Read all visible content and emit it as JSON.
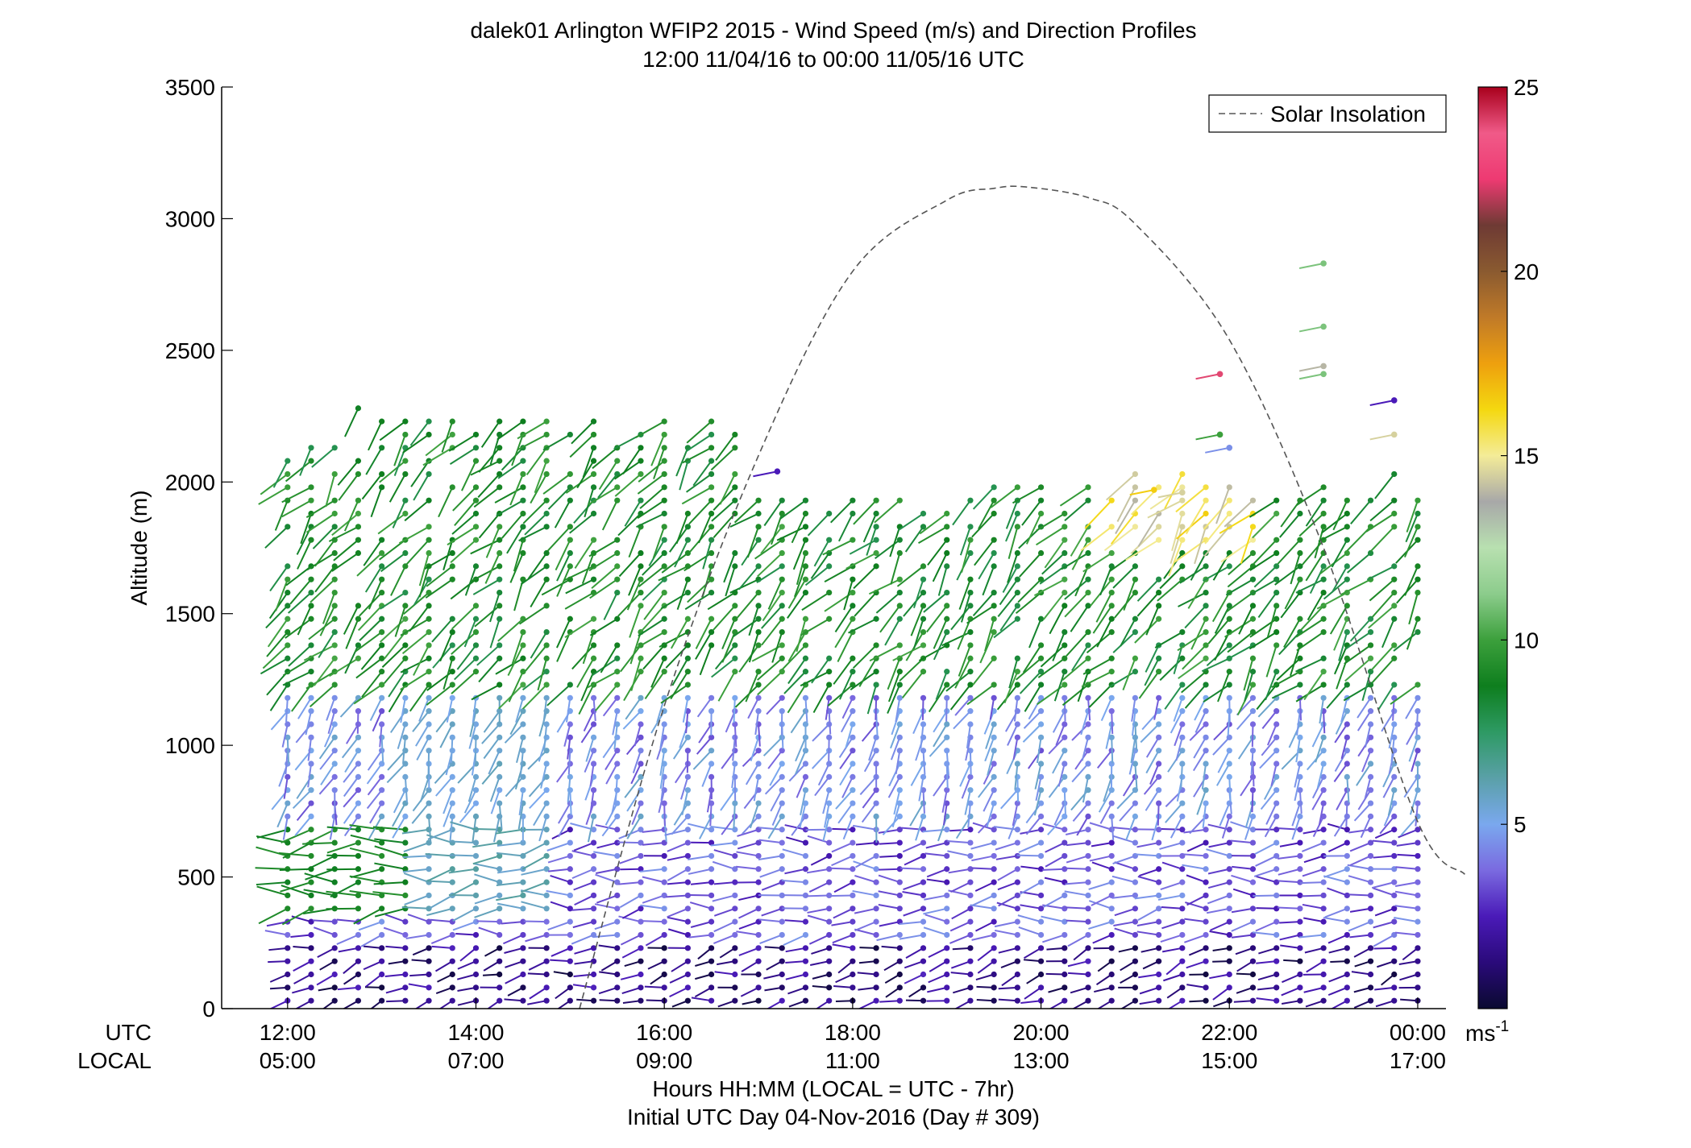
{
  "chart_data": {
    "type": "scatter",
    "title": "dalek01 Arlington WFIP2 2015 - Wind Speed (m/s) and Direction Profiles",
    "subtitle": "12:00 11/04/16 to 00:00 11/05/16  UTC",
    "ylabel": "Altitude (m)",
    "xlabel": "Hours HH:MM  (LOCAL = UTC - 7hr)",
    "xlabel2": "Initial UTC Day 04-Nov-2016 (Day # 309)",
    "xaxis_row_labels": [
      "UTC",
      "LOCAL"
    ],
    "x_ticks_utc": [
      "12:00",
      "14:00",
      "16:00",
      "18:00",
      "20:00",
      "22:00",
      "00:00"
    ],
    "x_ticks_local": [
      "05:00",
      "07:00",
      "09:00",
      "11:00",
      "13:00",
      "15:00",
      "17:00"
    ],
    "xlim_hours_utc": [
      11.3,
      24.3
    ],
    "ylim": [
      0,
      3500
    ],
    "y_ticks": [
      "0",
      "500",
      "1000",
      "1500",
      "2000",
      "2500",
      "3000",
      "3500"
    ],
    "grid": false,
    "legend": {
      "position": "top-right",
      "entries": [
        "Solar Insolation"
      ]
    },
    "colorbar": {
      "range": [
        0,
        25
      ],
      "ticks": [
        "5",
        "10",
        "15",
        "20",
        "25"
      ],
      "unit_label": "ms",
      "unit_exponent": "-1",
      "colors": [
        "#0a0a30",
        "#2a0a7a",
        "#4a1ab8",
        "#7a6ae0",
        "#7aa8ee",
        "#5aa0a8",
        "#2e9a64",
        "#0e7e1e",
        "#3ca03c",
        "#8ccc8c",
        "#b8e0b0",
        "#a8a8a8",
        "#f4ec98",
        "#f4d810",
        "#eea00e",
        "#c07a28",
        "#8a5a30",
        "#6e3a34",
        "#ee3a72",
        "#f05a88",
        "#a8001c"
      ]
    },
    "solar_insolation": {
      "style": "dashed",
      "x_hours_utc": [
        15.1,
        16.0,
        17.0,
        18.0,
        19.0,
        19.5,
        19.85,
        20.5,
        21.0,
        22.0,
        23.0,
        24.0,
        24.5
      ],
      "y": [
        0,
        1150,
        2100,
        2800,
        3070,
        3115,
        3120,
        3080,
        2980,
        2540,
        1750,
        710,
        510
      ]
    },
    "profiles": {
      "x_hours_utc": [
        12.0,
        12.25,
        12.5,
        12.75,
        13.0,
        13.25,
        13.5,
        13.75,
        14.0,
        14.25,
        14.5,
        14.75,
        15.0,
        15.25,
        15.5,
        15.75,
        16.0,
        16.25,
        16.5,
        16.75,
        17.0,
        17.25,
        17.5,
        17.75,
        18.0,
        18.25,
        18.5,
        18.75,
        19.0,
        19.25,
        19.5,
        19.75,
        20.0,
        20.25,
        20.5,
        20.75,
        21.0,
        21.25,
        21.5,
        21.75,
        22.0,
        22.25,
        22.5,
        22.75,
        23.0,
        23.25,
        23.5,
        23.75,
        24.0
      ],
      "wind_layers": [
        {
          "y_range": [
            20,
            280
          ],
          "speed": 1.5,
          "direction_deg": 255
        },
        {
          "y_range": [
            280,
            720
          ],
          "speed": 3.5,
          "direction_deg": 265
        },
        {
          "y_range": [
            720,
            1200
          ],
          "speed": 4.5,
          "direction_deg": 200
        },
        {
          "y_range": [
            1200,
            2050
          ],
          "speed": 9.0,
          "direction_deg": 220
        }
      ]
    },
    "upper_isolated_points": [
      {
        "x_hour": 17.2,
        "y": 2040,
        "speed": 2.5
      },
      {
        "x_hour": 21.9,
        "y": 2410,
        "speed": 24.0
      },
      {
        "x_hour": 21.9,
        "y": 2180,
        "speed": 10.0
      },
      {
        "x_hour": 22.0,
        "y": 2130,
        "speed": 4.5
      },
      {
        "x_hour": 23.0,
        "y": 2830,
        "speed": 11.0
      },
      {
        "x_hour": 23.0,
        "y": 2590,
        "speed": 11.0
      },
      {
        "x_hour": 23.0,
        "y": 2440,
        "speed": 14.0
      },
      {
        "x_hour": 23.0,
        "y": 2410,
        "speed": 11.0
      },
      {
        "x_hour": 23.75,
        "y": 2310,
        "speed": 2.5
      },
      {
        "x_hour": 23.75,
        "y": 2180,
        "speed": 14.5
      },
      {
        "x_hour": 21.2,
        "y": 1970,
        "speed": 16.5
      },
      {
        "x_hour": 21.5,
        "y": 1960,
        "speed": 14.5
      }
    ]
  }
}
